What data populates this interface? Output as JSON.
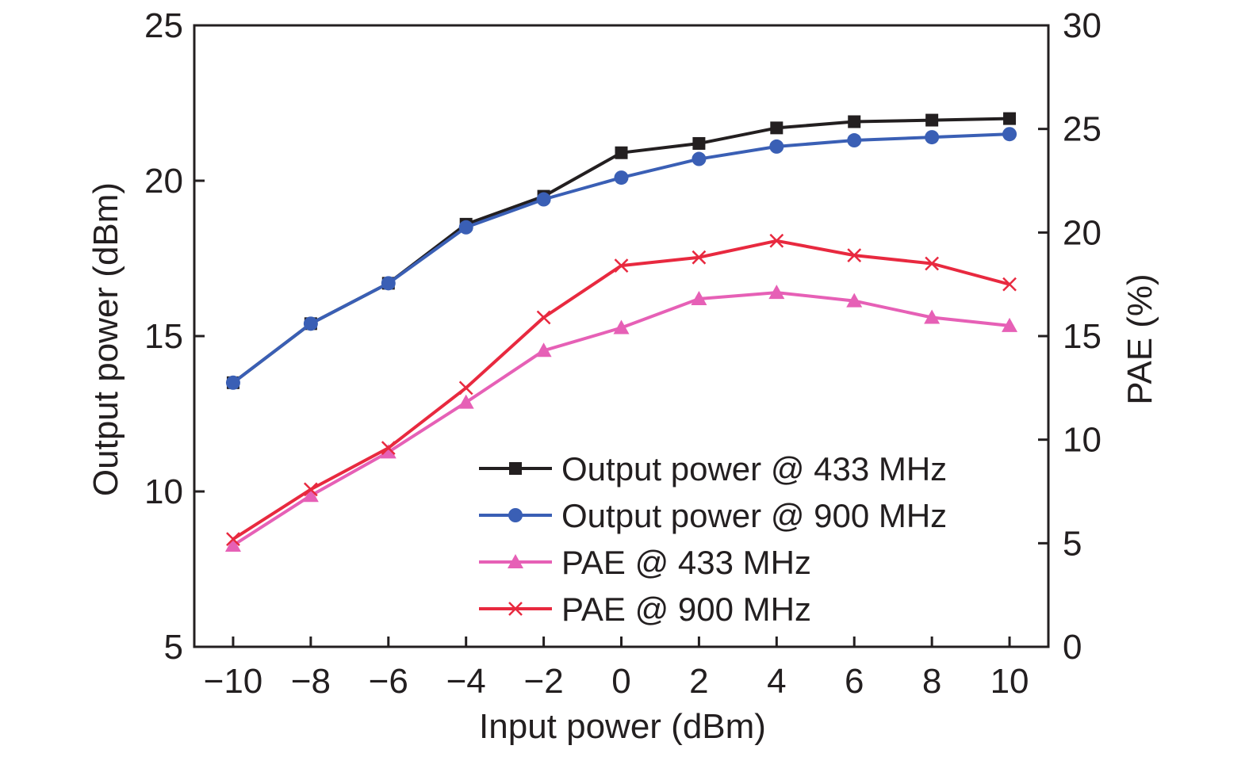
{
  "chart_data": {
    "type": "line",
    "title": "",
    "xlabel": "Input power (dBm)",
    "ylabel": "Output power (dBm)",
    "y2label": "PAE (%)",
    "x": [
      -10,
      -8,
      -6,
      -4,
      -2,
      0,
      2,
      4,
      6,
      8,
      10
    ],
    "x_tick_labels": [
      "−10",
      "−8",
      "−6",
      "−4",
      "−2",
      "0",
      "2",
      "4",
      "6",
      "8",
      "10"
    ],
    "xlim": [
      -11,
      11
    ],
    "ylim": [
      5,
      25
    ],
    "y_ticks": [
      5,
      10,
      15,
      20,
      25
    ],
    "y2lim": [
      0,
      30
    ],
    "y2_ticks": [
      0,
      5,
      10,
      15,
      20,
      25,
      30
    ],
    "grid": false,
    "legend_position": "bottom-right",
    "series": [
      {
        "name": "Output power @ 433 MHz",
        "axis": "left",
        "color": "#231f20",
        "marker": "square",
        "values": [
          13.5,
          15.4,
          16.7,
          18.6,
          19.5,
          20.9,
          21.2,
          21.7,
          21.9,
          21.95,
          22.0
        ]
      },
      {
        "name": "Output power @ 900 MHz",
        "axis": "left",
        "color": "#3a5fb5",
        "marker": "circle",
        "values": [
          13.5,
          15.4,
          16.7,
          18.5,
          19.4,
          20.1,
          20.7,
          21.1,
          21.3,
          21.4,
          21.5
        ]
      },
      {
        "name": "PAE @ 433 MHz",
        "axis": "right",
        "color": "#e660b6",
        "marker": "triangle",
        "values": [
          4.9,
          7.3,
          9.4,
          11.8,
          14.3,
          15.4,
          16.8,
          17.1,
          16.7,
          15.9,
          15.5
        ]
      },
      {
        "name": "PAE @ 900 MHz",
        "axis": "right",
        "color": "#e8293f",
        "marker": "x",
        "values": [
          5.2,
          7.6,
          9.6,
          12.5,
          15.9,
          18.4,
          18.8,
          19.6,
          18.9,
          18.5,
          17.5
        ]
      }
    ]
  }
}
